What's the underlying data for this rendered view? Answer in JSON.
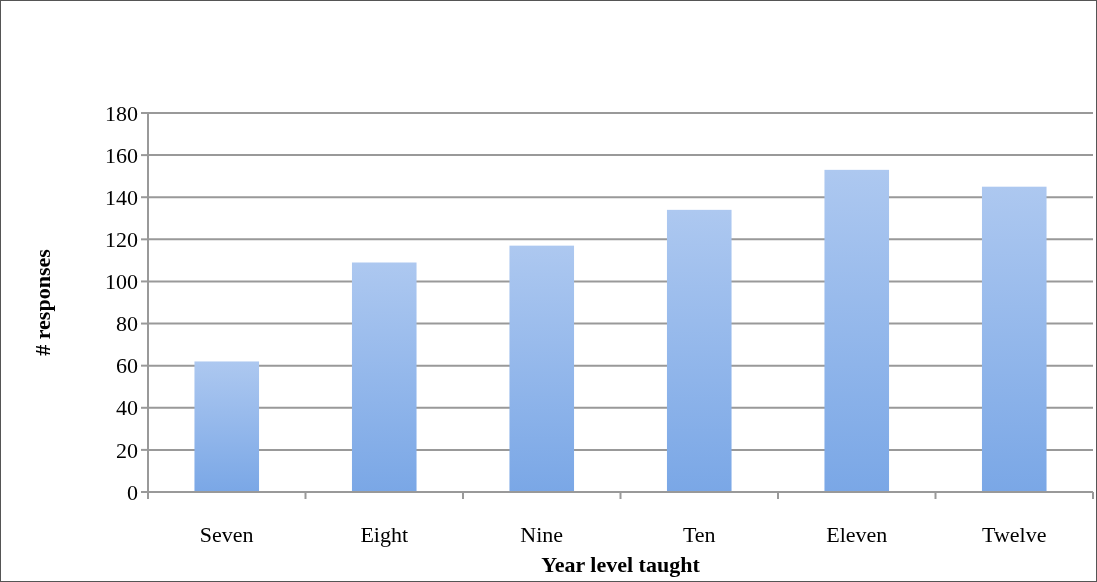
{
  "chart_data": {
    "type": "bar",
    "xlabel": "Year level taught",
    "ylabel": "# responses",
    "categories": [
      "Seven",
      "Eight",
      "Nine",
      "Ten",
      "Eleven",
      "Twelve"
    ],
    "values": [
      62,
      109,
      117,
      134,
      153,
      145
    ],
    "color": "#7aa7e6",
    "ylim": [
      0,
      180
    ],
    "yticks": [
      0,
      20,
      40,
      60,
      80,
      100,
      120,
      140,
      160,
      180
    ],
    "grid": "y"
  }
}
